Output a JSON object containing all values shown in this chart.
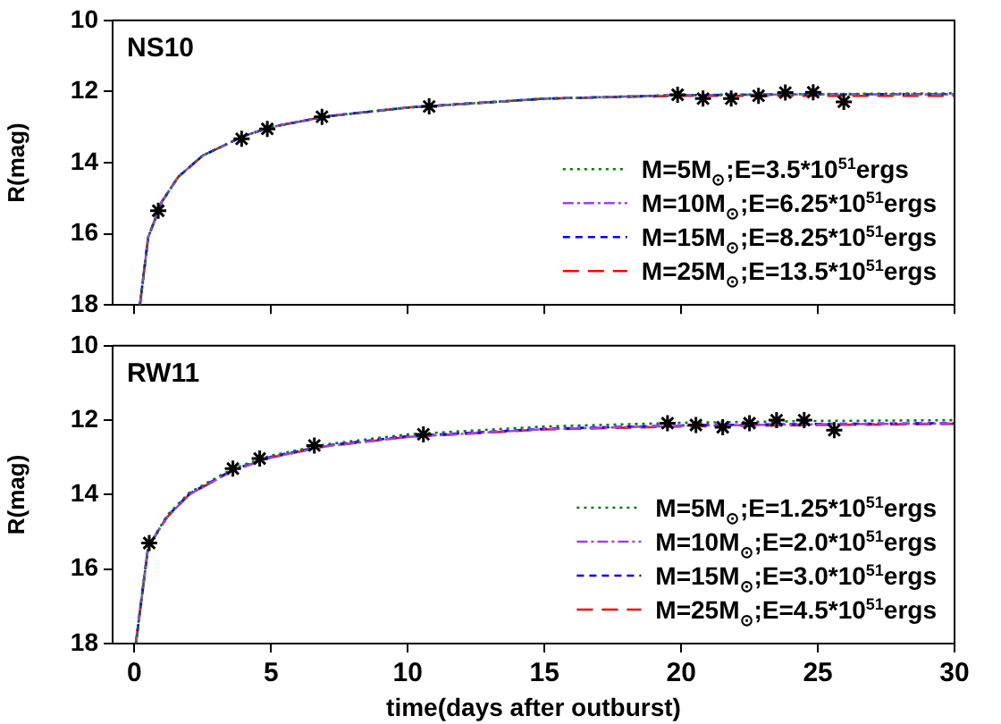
{
  "chart_data": [
    {
      "type": "line",
      "title": "NS10",
      "ylabel": "R(mag)",
      "xlim": [
        -0.8,
        30
      ],
      "xticks": [
        0,
        5,
        10,
        15,
        20,
        25,
        30
      ],
      "ylim": [
        18,
        10
      ],
      "yticks": [
        10,
        12,
        14,
        16,
        18
      ],
      "grid": false,
      "legend": "bottom right",
      "tick_labels": "y",
      "series": [
        {
          "type": "scatter",
          "color": "#000000",
          "marker": "cross",
          "x": [
            0.87,
            3.92,
            4.86,
            6.86,
            10.78,
            19.87,
            20.8,
            21.83,
            22.83,
            23.81,
            24.83,
            25.95
          ],
          "values": [
            15.35,
            13.33,
            13.05,
            12.71,
            12.42,
            12.09,
            12.2,
            12.2,
            12.12,
            12.03,
            12.02,
            12.29
          ]
        },
        {
          "name": "M=5M$_{⊙}$;E=3.5*10$^{51}$ergs",
          "color": "#008000",
          "line_style": "dotted",
          "marker": "none",
          "x": [
            0.2,
            0.5,
            1,
            1.6,
            2.5,
            4,
            5,
            7,
            10,
            15,
            20,
            25,
            30
          ],
          "values": [
            18,
            16.1,
            15.1,
            14.4,
            13.8,
            13.25,
            13.0,
            12.7,
            12.45,
            12.2,
            12.1,
            12.07,
            12.05
          ]
        },
        {
          "name": "M=10M$_{⊙}$;E=6.25*10$^{51}$ergs",
          "color": "#a040f0",
          "line_style": "dashed",
          "marker": "none",
          "x": [
            0.2,
            0.5,
            1,
            1.6,
            2.5,
            4,
            5,
            7,
            10,
            15,
            20,
            25,
            30
          ],
          "values": [
            18,
            16.1,
            15.1,
            14.4,
            13.8,
            13.25,
            13.0,
            12.7,
            12.45,
            12.2,
            12.1,
            12.08,
            12.08
          ]
        },
        {
          "name": "M=15M$_{⊙}$;E=8.25*10$^{51}$ergs",
          "color": "#0000ff",
          "line_style": "dashed",
          "marker": "none",
          "x": [
            0.2,
            0.5,
            1,
            1.6,
            2.5,
            4,
            5,
            7,
            10,
            15,
            20,
            25,
            30
          ],
          "values": [
            18,
            16.1,
            15.1,
            14.4,
            13.8,
            13.25,
            13.0,
            12.7,
            12.45,
            12.2,
            12.1,
            12.08,
            12.07
          ]
        },
        {
          "name": "M=25M$_{⊙}$;E=13.5*10$^{51}$ergs",
          "color": "#ff0000",
          "line_style": "dashed",
          "marker": "none",
          "x": [
            0.2,
            0.5,
            1,
            1.6,
            2.5,
            4,
            5,
            7,
            10,
            15,
            20,
            25,
            30
          ],
          "values": [
            18,
            16.1,
            15.1,
            14.4,
            13.8,
            13.25,
            13.0,
            12.7,
            12.45,
            12.2,
            12.12,
            12.12,
            12.12
          ]
        }
      ]
    },
    {
      "type": "line",
      "title": "RW11",
      "xlabel": "time(days after outburst)",
      "ylabel": "R(mag)",
      "xlim": [
        -0.8,
        30
      ],
      "xticks": [
        0,
        5,
        10,
        15,
        20,
        25,
        30
      ],
      "ylim": [
        18,
        10
      ],
      "yticks": [
        10,
        12,
        14,
        16,
        18
      ],
      "grid": false,
      "legend": "bottom right",
      "series": [
        {
          "type": "scatter",
          "color": "#000000",
          "marker": "cross",
          "x": [
            0.54,
            3.6,
            4.58,
            6.58,
            10.57,
            19.5,
            20.54,
            21.52,
            22.5,
            23.49,
            24.5,
            25.6
          ],
          "values": [
            15.3,
            13.3,
            13.03,
            12.68,
            12.38,
            12.08,
            12.13,
            12.19,
            12.08,
            12.0,
            12.0,
            12.27
          ]
        },
        {
          "name": "M=5M$_{⊙}$;E=1.25*10$^{51}$ergs",
          "color": "#008000",
          "line_style": "dotted",
          "marker": "none",
          "x": [
            0.05,
            0.5,
            1.2,
            2,
            3.6,
            5,
            7,
            10,
            15,
            20,
            25,
            30
          ],
          "values": [
            18,
            15.4,
            14.55,
            13.95,
            13.3,
            12.95,
            12.65,
            12.38,
            12.17,
            12.07,
            12.02,
            12.0
          ]
        },
        {
          "name": "M=10M$_{⊙}$;E=2.0*10$^{51}$ergs",
          "color": "#a040f0",
          "line_style": "dashed",
          "marker": "none",
          "x": [
            0.05,
            0.5,
            1.2,
            2,
            3.6,
            5,
            7,
            10,
            15,
            20,
            25,
            30
          ],
          "values": [
            18,
            15.4,
            14.6,
            14.0,
            13.35,
            13.0,
            12.7,
            12.45,
            12.24,
            12.15,
            12.11,
            12.09
          ]
        },
        {
          "name": "M=15M$_{⊙}$;E=3.0*10$^{51}$ergs",
          "color": "#0000ff",
          "line_style": "dashed",
          "marker": "none",
          "x": [
            0.05,
            0.5,
            1.2,
            2,
            3.6,
            5,
            7,
            10,
            15,
            20,
            25,
            30
          ],
          "values": [
            18,
            15.4,
            14.58,
            13.98,
            13.33,
            12.98,
            12.68,
            12.43,
            12.23,
            12.14,
            12.1,
            12.08
          ]
        },
        {
          "name": "M=25M$_{⊙}$;E=4.5*10$^{51}$ergs",
          "color": "#ff0000",
          "line_style": "dashed",
          "marker": "none",
          "x": [
            0.05,
            0.5,
            1.2,
            2,
            3.6,
            5,
            7,
            10,
            15,
            20,
            25,
            30
          ],
          "values": [
            18,
            15.4,
            14.6,
            14.0,
            13.35,
            13.0,
            12.7,
            12.45,
            12.25,
            12.17,
            12.13,
            12.1
          ]
        }
      ]
    }
  ]
}
